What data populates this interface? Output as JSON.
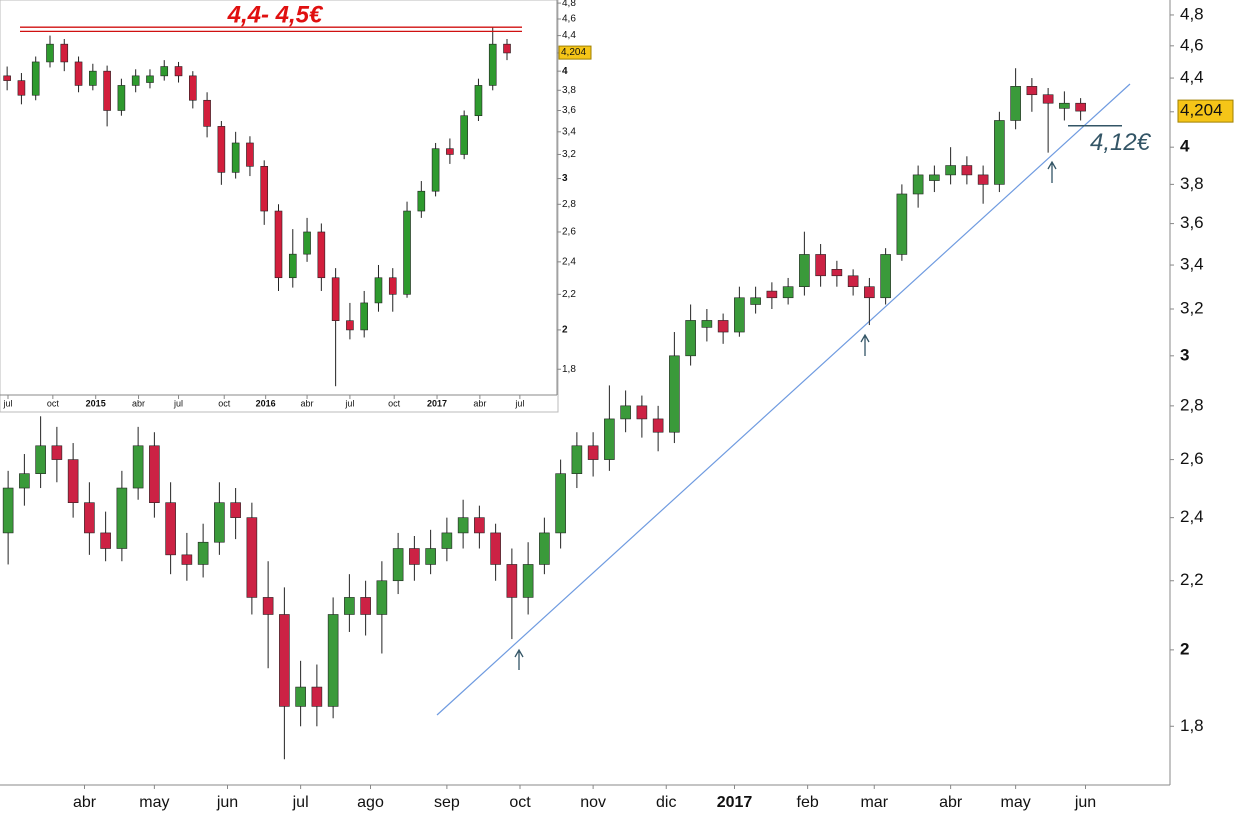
{
  "chart_data": [
    {
      "type": "candlestick",
      "log_scale": true,
      "up_color": "#3a9a3a",
      "down_color": "#cc2244",
      "xlim": [
        0,
        72
      ],
      "ylim": [
        1.66,
        4.9
      ],
      "xticks": [
        {
          "value": 5.2,
          "label": "abr"
        },
        {
          "value": 9.5,
          "label": "may"
        },
        {
          "value": 14,
          "label": "jun"
        },
        {
          "value": 18.5,
          "label": "jul"
        },
        {
          "value": 22.8,
          "label": "ago"
        },
        {
          "value": 27.5,
          "label": "sep"
        },
        {
          "value": 32,
          "label": "oct"
        },
        {
          "value": 36.5,
          "label": "nov"
        },
        {
          "value": 41,
          "label": "dic"
        },
        {
          "value": 45.2,
          "label": "2017"
        },
        {
          "value": 49.7,
          "label": "feb"
        },
        {
          "value": 53.8,
          "label": "mar"
        },
        {
          "value": 58.5,
          "label": "abr"
        },
        {
          "value": 62.5,
          "label": "may"
        },
        {
          "value": 66.8,
          "label": "jun"
        }
      ],
      "yticks": [
        {
          "value": 1.8,
          "label": "1,8"
        },
        {
          "value": 2,
          "label": "2"
        },
        {
          "value": 2.2,
          "label": "2,2"
        },
        {
          "value": 2.4,
          "label": "2,4"
        },
        {
          "value": 2.6,
          "label": "2,6"
        },
        {
          "value": 2.8,
          "label": "2,8"
        },
        {
          "value": 3,
          "label": "3"
        },
        {
          "value": 3.2,
          "label": "3,2"
        },
        {
          "value": 3.4,
          "label": "3,4"
        },
        {
          "value": 3.6,
          "label": "3,6"
        },
        {
          "value": 3.8,
          "label": "3,8"
        },
        {
          "value": 4,
          "label": "4"
        },
        {
          "value": 4.2,
          "label": "4,2"
        },
        {
          "value": 4.4,
          "label": "4,4"
        },
        {
          "value": 4.6,
          "label": "4,6"
        },
        {
          "value": 4.8,
          "label": "4,8"
        }
      ],
      "open": [
        2.35,
        2.5,
        2.55,
        2.65,
        2.6,
        2.45,
        2.35,
        2.3,
        2.5,
        2.65,
        2.45,
        2.28,
        2.25,
        2.32,
        2.45,
        2.4,
        2.15,
        2.1,
        1.85,
        1.9,
        1.85,
        2.1,
        2.15,
        2.1,
        2.2,
        2.3,
        2.25,
        2.3,
        2.35,
        2.4,
        2.35,
        2.25,
        2.15,
        2.25,
        2.35,
        2.55,
        2.65,
        2.6,
        2.75,
        2.8,
        2.75,
        2.7,
        3.0,
        3.12,
        3.15,
        3.1,
        3.22,
        3.28,
        3.25,
        3.3,
        3.45,
        3.38,
        3.35,
        3.3,
        3.25,
        3.45,
        3.75,
        3.82,
        3.85,
        3.9,
        3.85,
        3.8,
        4.15,
        4.35,
        4.3,
        4.22,
        4.25
      ],
      "high": [
        2.56,
        2.62,
        2.76,
        2.72,
        2.66,
        2.52,
        2.42,
        2.56,
        2.72,
        2.7,
        2.52,
        2.35,
        2.38,
        2.52,
        2.5,
        2.45,
        2.26,
        2.18,
        1.97,
        1.96,
        2.15,
        2.22,
        2.2,
        2.26,
        2.35,
        2.34,
        2.36,
        2.4,
        2.46,
        2.44,
        2.38,
        2.3,
        2.32,
        2.4,
        2.6,
        2.7,
        2.7,
        2.88,
        2.86,
        2.84,
        2.8,
        3.1,
        3.22,
        3.2,
        3.18,
        3.3,
        3.3,
        3.32,
        3.34,
        3.56,
        3.5,
        3.42,
        3.38,
        3.34,
        3.48,
        3.8,
        3.9,
        3.9,
        4.0,
        3.95,
        3.9,
        4.2,
        4.46,
        4.4,
        4.34,
        4.32,
        4.28
      ],
      "low": [
        2.25,
        2.44,
        2.5,
        2.52,
        2.4,
        2.28,
        2.26,
        2.26,
        2.46,
        2.4,
        2.22,
        2.2,
        2.21,
        2.28,
        2.33,
        2.1,
        1.95,
        1.72,
        1.8,
        1.8,
        1.82,
        2.05,
        2.04,
        1.99,
        2.16,
        2.2,
        2.22,
        2.26,
        2.3,
        2.3,
        2.2,
        2.03,
        2.1,
        2.22,
        2.3,
        2.5,
        2.54,
        2.56,
        2.7,
        2.68,
        2.63,
        2.66,
        2.96,
        3.06,
        3.05,
        3.08,
        3.18,
        3.2,
        3.22,
        3.26,
        3.3,
        3.3,
        3.26,
        3.13,
        3.22,
        3.42,
        3.68,
        3.76,
        3.8,
        3.8,
        3.7,
        3.76,
        4.1,
        4.2,
        3.97,
        4.15,
        4.15
      ],
      "close": [
        2.5,
        2.55,
        2.65,
        2.6,
        2.45,
        2.35,
        2.3,
        2.5,
        2.65,
        2.45,
        2.28,
        2.25,
        2.32,
        2.45,
        2.4,
        2.15,
        2.1,
        1.85,
        1.9,
        1.85,
        2.1,
        2.15,
        2.1,
        2.2,
        2.3,
        2.25,
        2.3,
        2.35,
        2.4,
        2.35,
        2.25,
        2.15,
        2.25,
        2.35,
        2.55,
        2.65,
        2.6,
        2.75,
        2.8,
        2.75,
        2.7,
        3.0,
        3.15,
        3.15,
        3.1,
        3.25,
        3.25,
        3.25,
        3.3,
        3.45,
        3.35,
        3.35,
        3.3,
        3.25,
        3.45,
        3.75,
        3.85,
        3.85,
        3.9,
        3.85,
        3.8,
        4.15,
        4.35,
        4.3,
        4.25,
        4.25,
        4.204
      ],
      "last_price": {
        "value": 4.204,
        "label": "4,204"
      },
      "support": {
        "value": 4.12,
        "label": "4,12€"
      }
    },
    {
      "type": "candlestick",
      "log_scale": true,
      "up_color": "#2e9a2e",
      "down_color": "#d21e3c",
      "xlim": [
        0,
        39
      ],
      "ylim": [
        1.68,
        4.84
      ],
      "xticks": [
        {
          "value": 0.56,
          "label": "jul"
        },
        {
          "value": 3.7,
          "label": "oct"
        },
        {
          "value": 6.7,
          "label": "2015"
        },
        {
          "value": 9.7,
          "label": "abr"
        },
        {
          "value": 12.5,
          "label": "jul"
        },
        {
          "value": 15.7,
          "label": "oct"
        },
        {
          "value": 18.6,
          "label": "2016"
        },
        {
          "value": 21.5,
          "label": "abr"
        },
        {
          "value": 24.5,
          "label": "jul"
        },
        {
          "value": 27.6,
          "label": "oct"
        },
        {
          "value": 30.6,
          "label": "2017"
        },
        {
          "value": 33.6,
          "label": "abr"
        },
        {
          "value": 36.4,
          "label": "jul"
        }
      ],
      "yticks": [
        {
          "value": 1.8,
          "label": "1,8"
        },
        {
          "value": 2,
          "label": "2"
        },
        {
          "value": 2.2,
          "label": "2,2"
        },
        {
          "value": 2.4,
          "label": "2,4"
        },
        {
          "value": 2.6,
          "label": "2,6"
        },
        {
          "value": 2.8,
          "label": "2,8"
        },
        {
          "value": 3,
          "label": "3"
        },
        {
          "value": 3.2,
          "label": "3,2"
        },
        {
          "value": 3.4,
          "label": "3,4"
        },
        {
          "value": 3.6,
          "label": "3,6"
        },
        {
          "value": 3.8,
          "label": "3,8"
        },
        {
          "value": 4,
          "label": "4"
        },
        {
          "value": 4.2,
          "label": "4,2"
        },
        {
          "value": 4.4,
          "label": "4,4"
        },
        {
          "value": 4.6,
          "label": "4,6"
        },
        {
          "value": 4.8,
          "label": "4,8"
        }
      ],
      "open": [
        3.95,
        3.9,
        3.75,
        4.1,
        4.3,
        4.1,
        3.85,
        4.0,
        3.6,
        3.85,
        3.88,
        3.95,
        4.05,
        3.95,
        3.7,
        3.45,
        3.05,
        3.3,
        3.1,
        2.75,
        2.3,
        2.45,
        2.6,
        2.3,
        2.05,
        2.0,
        2.15,
        2.3,
        2.2,
        2.75,
        2.9,
        3.25,
        3.2,
        3.55,
        3.85,
        4.3
      ],
      "high": [
        4.05,
        3.98,
        4.16,
        4.4,
        4.36,
        4.16,
        4.08,
        4.06,
        3.92,
        4.02,
        4.02,
        4.12,
        4.1,
        4.0,
        3.78,
        3.5,
        3.4,
        3.36,
        3.15,
        2.8,
        2.62,
        2.7,
        2.66,
        2.36,
        2.15,
        2.22,
        2.38,
        2.36,
        2.82,
        2.98,
        3.3,
        3.34,
        3.6,
        3.92,
        4.5,
        4.36
      ],
      "low": [
        3.8,
        3.66,
        3.7,
        4.04,
        4.0,
        3.78,
        3.8,
        3.45,
        3.55,
        3.78,
        3.82,
        3.9,
        3.88,
        3.62,
        3.35,
        2.95,
        3.0,
        3.02,
        2.65,
        2.22,
        2.24,
        2.4,
        2.22,
        1.72,
        1.95,
        1.96,
        2.1,
        2.1,
        2.18,
        2.7,
        2.86,
        3.12,
        3.16,
        3.5,
        3.8,
        4.12
      ],
      "close": [
        3.9,
        3.75,
        4.1,
        4.3,
        4.1,
        3.85,
        4.0,
        3.6,
        3.85,
        3.95,
        3.95,
        4.05,
        3.95,
        3.7,
        3.45,
        3.05,
        3.3,
        3.1,
        2.75,
        2.3,
        2.45,
        2.6,
        2.3,
        2.05,
        2.0,
        2.15,
        2.3,
        2.2,
        2.75,
        2.9,
        3.25,
        3.2,
        3.55,
        3.85,
        4.3,
        4.2
      ],
      "last_price": {
        "value": 4.204,
        "label": "4,204"
      },
      "resistance": {
        "label": "4,4- 4,5€",
        "lines": [
          4.45,
          4.5
        ]
      }
    }
  ]
}
